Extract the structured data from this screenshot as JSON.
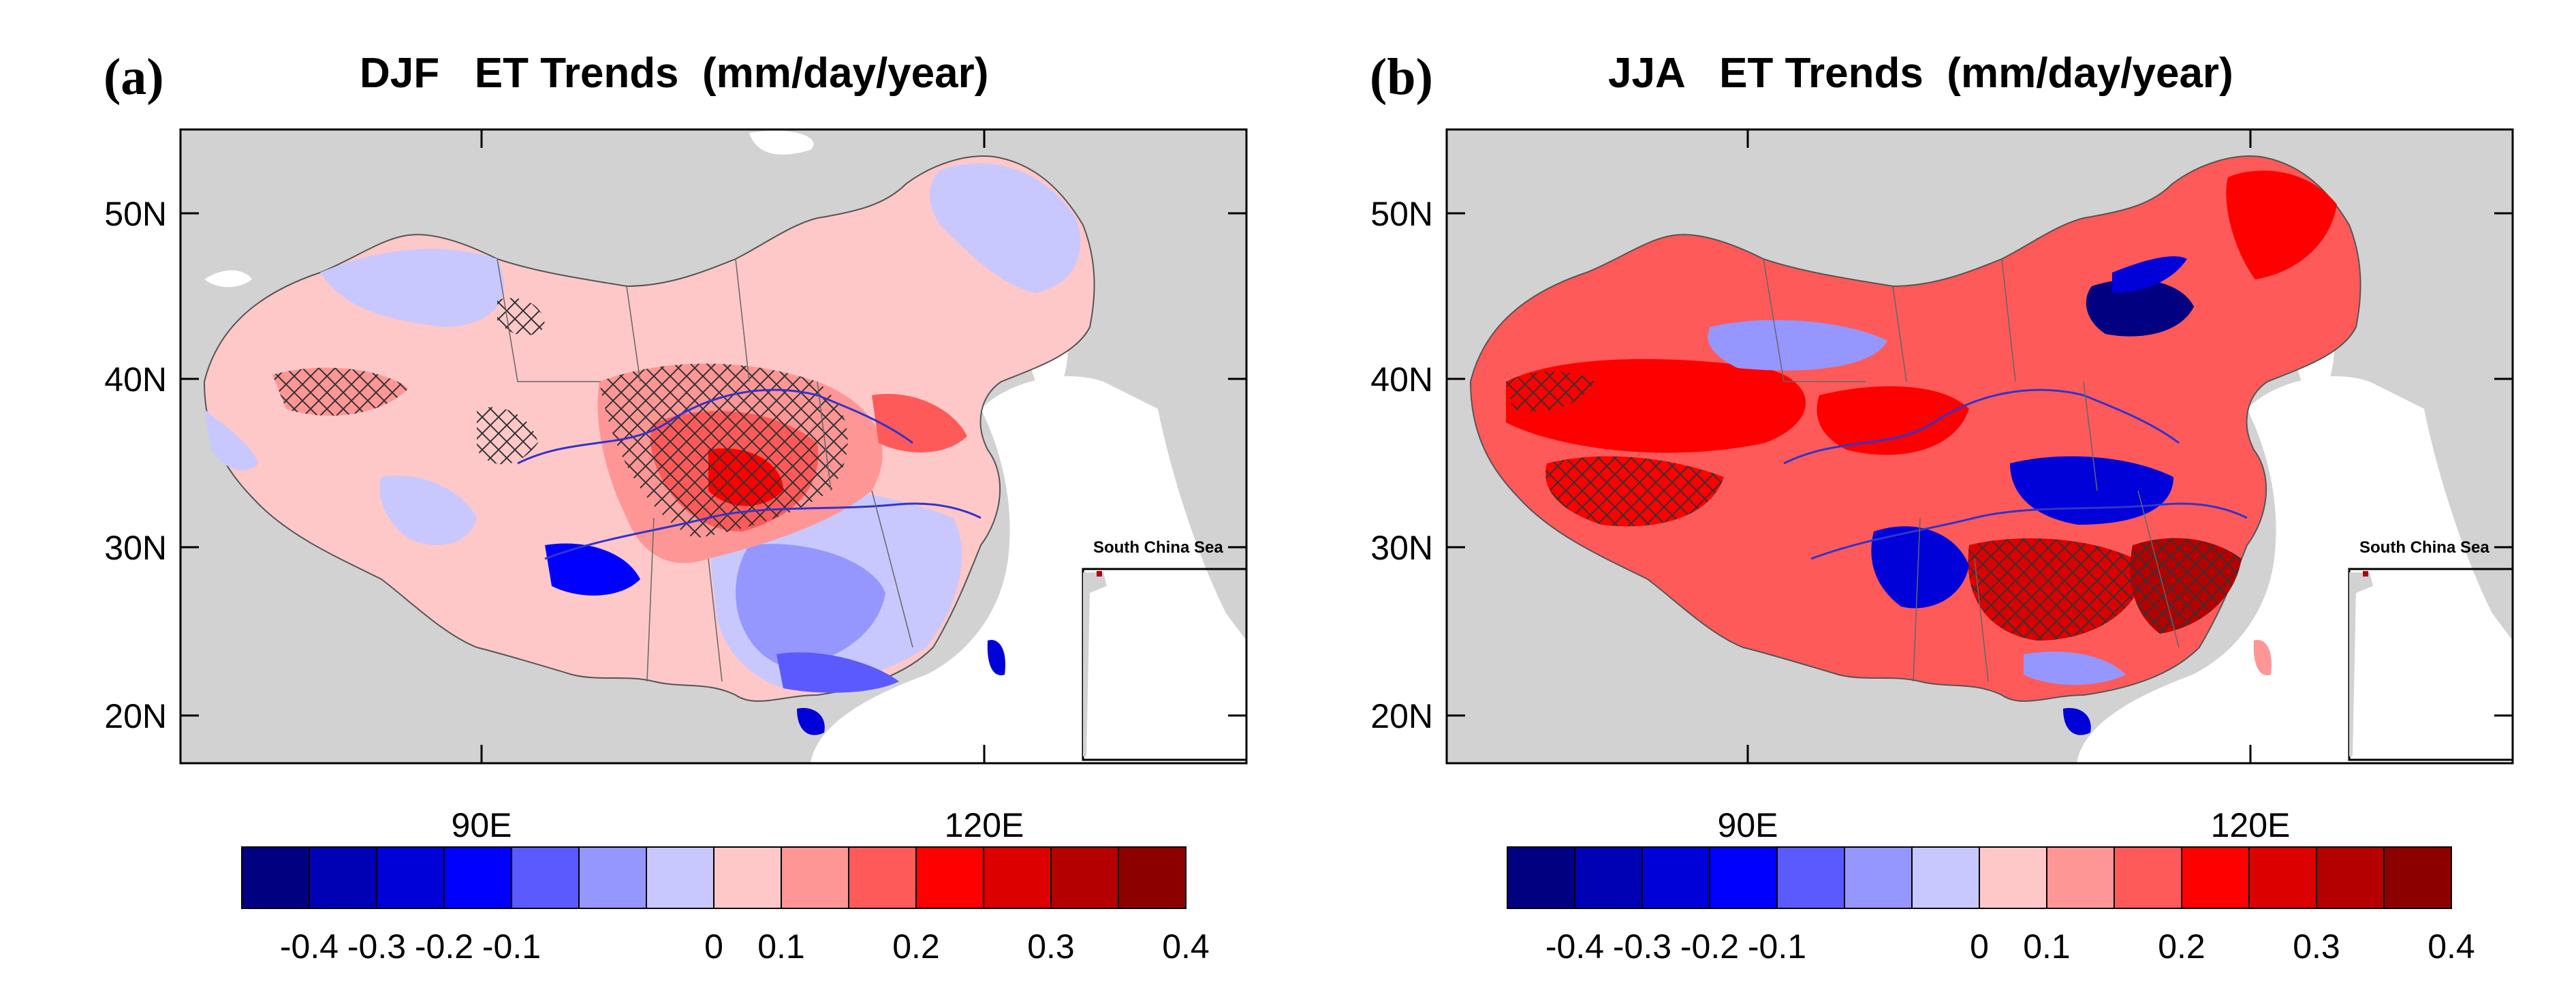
{
  "panels": [
    {
      "letter": "(a)",
      "title": "DJF   ET Trends  (mm/day/year)",
      "lat_labels": [
        "50N",
        "40N",
        "30N",
        "20N"
      ],
      "lon_labels": [
        "90E",
        "120E"
      ],
      "inset_label": "South China Sea",
      "colorbar": {
        "labels": [
          "-0.4",
          "-0.3",
          "-0.2",
          "-0.1",
          "0",
          "0.1",
          "0.2",
          "0.3",
          "0.4"
        ],
        "colors": [
          "#000080",
          "#0000b4",
          "#0000d8",
          "#0000ff",
          "#5a5aff",
          "#9696ff",
          "#c8c8ff",
          "#ffc8c8",
          "#ff9696",
          "#ff5a5a",
          "#ff0000",
          "#dc0000",
          "#b40000",
          "#8c0000"
        ]
      }
    },
    {
      "letter": "(b)",
      "title": "JJA   ET Trends  (mm/day/year)",
      "lat_labels": [
        "50N",
        "40N",
        "30N",
        "20N"
      ],
      "lon_labels": [
        "90E",
        "120E"
      ],
      "inset_label": "South China Sea",
      "colorbar": {
        "labels": [
          "-0.4",
          "-0.3",
          "-0.2",
          "-0.1",
          "0",
          "0.1",
          "0.2",
          "0.3",
          "0.4"
        ],
        "colors": [
          "#000080",
          "#0000b4",
          "#0000d8",
          "#0000ff",
          "#5a5aff",
          "#9696ff",
          "#c8c8ff",
          "#ffc8c8",
          "#ff9696",
          "#ff5a5a",
          "#ff0000",
          "#dc0000",
          "#b40000",
          "#8c0000"
        ]
      }
    }
  ]
}
